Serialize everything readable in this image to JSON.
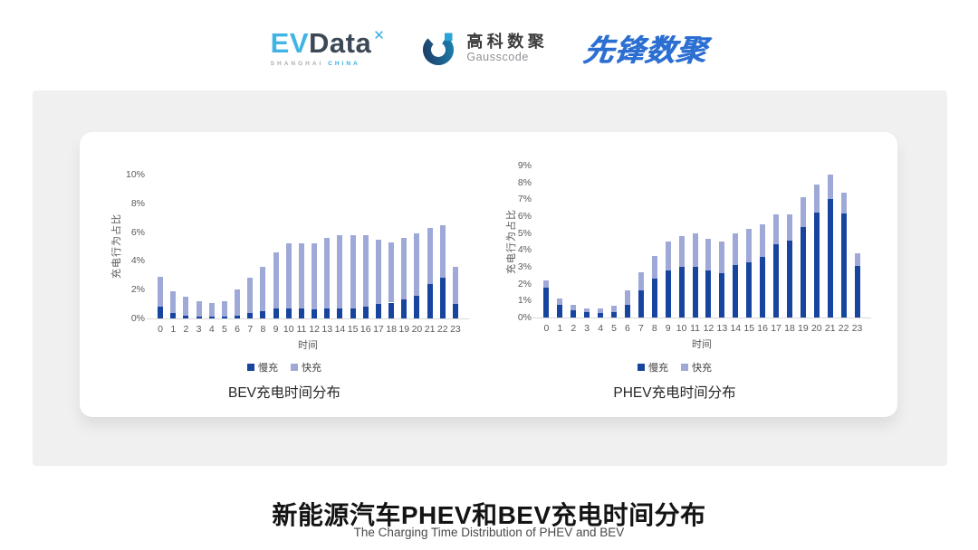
{
  "logos": {
    "evdata": {
      "ev": "EV",
      "data": "Data",
      "star": "✕",
      "sub_left": "SHANGHAI",
      "sub_right": "CHINA"
    },
    "gausscode": {
      "cn": "高科数聚",
      "en": "Gausscode"
    },
    "pioneer": {
      "text": "先锋数聚"
    }
  },
  "footer": {
    "title_cn": "新能源汽车PHEV和BEV充电时间分布",
    "title_en": "The Charging Time Distribution of PHEV and BEV"
  },
  "colors": {
    "slow": "#17449f",
    "fast": "#9fa9d8",
    "axis_line": "#d9d9d9",
    "axis_text": "#595959",
    "pioneer_blue": "#2c6fd2",
    "evdata_blue": "#41b4e6"
  },
  "chart_data": [
    {
      "type": "bar",
      "stacked": true,
      "title": "BEV充电时间分布",
      "xlabel": "时间",
      "ylabel": "充电行为占比",
      "unit": "%",
      "grid": false,
      "legend_position": "bottom",
      "ylim": [
        0,
        10
      ],
      "yticks": [
        "0%",
        "2%",
        "4%",
        "6%",
        "8%",
        "10%"
      ],
      "ytick_values": [
        0,
        2,
        4,
        6,
        8,
        10
      ],
      "categories": [
        "0",
        "1",
        "2",
        "3",
        "4",
        "5",
        "6",
        "7",
        "8",
        "9",
        "10",
        "11",
        "12",
        "13",
        "14",
        "15",
        "16",
        "17",
        "18",
        "19",
        "20",
        "21",
        "22",
        "23"
      ],
      "series": [
        {
          "name": "慢充",
          "color": "#17449f",
          "values": [
            0.8,
            0.4,
            0.2,
            0.1,
            0.1,
            0.1,
            0.2,
            0.4,
            0.5,
            0.7,
            0.7,
            0.7,
            0.6,
            0.7,
            0.7,
            0.7,
            0.8,
            1.0,
            1.1,
            1.3,
            1.6,
            2.4,
            2.8,
            1.0
          ]
        },
        {
          "name": "快充",
          "color": "#9fa9d8",
          "values": [
            2.1,
            1.5,
            1.3,
            1.1,
            1.0,
            1.1,
            1.8,
            2.4,
            3.1,
            3.9,
            4.5,
            4.5,
            4.6,
            4.9,
            5.1,
            5.1,
            5.0,
            4.5,
            4.2,
            4.3,
            4.3,
            3.9,
            3.7,
            2.6
          ]
        }
      ]
    },
    {
      "type": "bar",
      "stacked": true,
      "title": "PHEV充电时间分布",
      "xlabel": "时间",
      "ylabel": "充电行为占比",
      "unit": "%",
      "grid": false,
      "legend_position": "bottom",
      "ylim": [
        0,
        9
      ],
      "yticks": [
        "0%",
        "1%",
        "2%",
        "3%",
        "4%",
        "5%",
        "6%",
        "7%",
        "8%",
        "9%"
      ],
      "ytick_values": [
        0,
        1,
        2,
        3,
        4,
        5,
        6,
        7,
        8,
        9
      ],
      "categories": [
        "0",
        "1",
        "2",
        "3",
        "4",
        "5",
        "6",
        "7",
        "8",
        "9",
        "10",
        "11",
        "12",
        "13",
        "14",
        "15",
        "16",
        "17",
        "18",
        "19",
        "20",
        "21",
        "22",
        "23"
      ],
      "series": [
        {
          "name": "慢充",
          "color": "#17449f",
          "values": [
            1.75,
            0.75,
            0.45,
            0.3,
            0.25,
            0.3,
            0.75,
            1.6,
            2.3,
            2.8,
            3.0,
            3.0,
            2.8,
            2.65,
            3.1,
            3.25,
            3.6,
            4.35,
            4.55,
            5.35,
            6.2,
            7.0,
            6.15,
            3.05
          ]
        },
        {
          "name": "快充",
          "color": "#9fa9d8",
          "values": [
            0.45,
            0.4,
            0.3,
            0.25,
            0.3,
            0.4,
            0.85,
            1.1,
            1.35,
            1.7,
            1.8,
            2.0,
            1.85,
            1.85,
            1.9,
            2.0,
            1.9,
            1.75,
            1.55,
            1.75,
            1.7,
            1.45,
            1.25,
            0.75
          ]
        }
      ]
    }
  ]
}
